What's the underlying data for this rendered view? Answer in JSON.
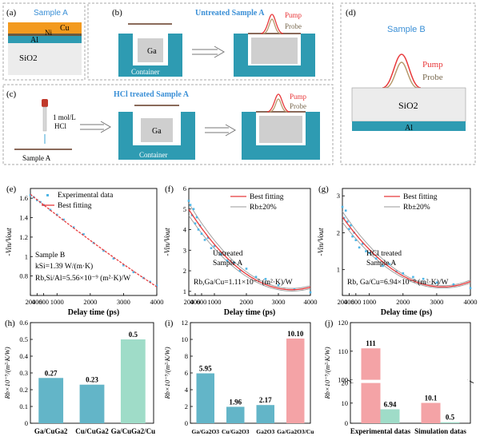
{
  "colors": {
    "teal": "#2e9bb2",
    "cu": "#f39a1e",
    "pump": "#e8393b",
    "probe": "#b79a6d",
    "experimental_points": "#4fb6e6",
    "fit_line": "#e8393b",
    "bar_teal": "#63b5c8",
    "bar_green": "#9fdcc8",
    "bar_pink": "#f4a3a6",
    "title_blue": "#3a8fd6"
  },
  "panels": {
    "a": {
      "letter": "(a)",
      "title": "Sample A",
      "cu": "Cu",
      "ni": "Ni",
      "al": "Al",
      "sio2": "SiO2"
    },
    "b": {
      "letter": "(b)",
      "title": "Untreated Sample A",
      "ga": "Ga",
      "container": "Container",
      "pump": "Pump",
      "probe": "Probe"
    },
    "c": {
      "letter": "(c)",
      "title": "HCl treated Sample A",
      "reagent": "1 mol/L",
      "reagent2": "HCl",
      "sample": "Sample A",
      "ga": "Ga",
      "container": "Container",
      "pump": "Pump",
      "probe": "Probe"
    },
    "d": {
      "letter": "(d)",
      "title": "Sample B",
      "pump": "Pump",
      "probe": "Probe",
      "sio2": "SiO2",
      "al": "Al"
    }
  },
  "chart_data": [
    {
      "id": "e",
      "letter": "(e)",
      "type": "scatter",
      "xlabel": "Delay time (ps)",
      "ylabel": "-Vin/Vout",
      "xlim": [
        200,
        4000
      ],
      "ylim": [
        0.6,
        1.7
      ],
      "xticks": [
        200,
        400,
        600,
        1000,
        2000,
        3000,
        4000
      ],
      "yticks": [
        1.6,
        1.4,
        1.2,
        1.0,
        0.8
      ],
      "legend": [
        "Experimental data",
        "Best fitting"
      ],
      "annotations": [
        "Sample B",
        "kSi=1.39 W/(m·K)",
        "Rb,Si/Al=5.56×10⁻⁹ (m²·K)/W"
      ],
      "x": [
        200,
        300,
        400,
        500,
        600,
        800,
        1000,
        1200,
        1500,
        1800,
        2100,
        2400,
        2700,
        3000,
        3300,
        3600,
        3800,
        4000
      ],
      "y": [
        1.63,
        1.61,
        1.58,
        1.56,
        1.53,
        1.48,
        1.43,
        1.38,
        1.3,
        1.23,
        1.14,
        1.06,
        0.98,
        0.91,
        0.84,
        0.78,
        0.74,
        0.7
      ]
    },
    {
      "id": "f",
      "letter": "(f)",
      "type": "scatter",
      "xlabel": "Delay time (ps)",
      "ylabel": "-Vin/Vout",
      "xlim": [
        200,
        4000
      ],
      "ylim": [
        0.8,
        6.0
      ],
      "xticks": [
        200,
        400,
        600,
        1000,
        2000,
        3000,
        4000
      ],
      "yticks": [
        6,
        5,
        4,
        3,
        2,
        1
      ],
      "legend": [
        "Best fitting",
        "Rb±20%"
      ],
      "annotations": [
        "Untreated",
        "Sample A",
        "Rb,Ga/Cu=1.11×10⁻⁷ (m²·K)/W"
      ],
      "x": [
        200,
        250,
        300,
        350,
        400,
        450,
        500,
        550,
        600,
        700,
        800,
        900,
        1000,
        1200,
        1400,
        1600,
        1800,
        2000,
        2300,
        2600,
        3000,
        3500,
        4000
      ],
      "y": [
        5.4,
        5.2,
        4.7,
        5.0,
        4.3,
        4.6,
        4.0,
        4.2,
        3.8,
        3.5,
        3.6,
        3.1,
        3.2,
        2.8,
        2.5,
        2.4,
        2.0,
        2.1,
        1.7,
        1.6,
        1.3,
        1.1,
        0.95
      ]
    },
    {
      "id": "g",
      "letter": "(g)",
      "type": "scatter",
      "xlabel": "Delay time (ps)",
      "ylabel": "-Vin/Vout",
      "xlim": [
        200,
        4000
      ],
      "ylim": [
        0.3,
        3.2
      ],
      "xticks": [
        200,
        400,
        600,
        1000,
        2000,
        3000,
        4000
      ],
      "yticks": [
        3,
        2,
        1
      ],
      "legend": [
        "Best fitting",
        "Rb±20%"
      ],
      "annotations": [
        "HCl treated",
        "Sample A",
        "Rb, Ga/Cu=6.94×10⁻⁹ (m²·K)/W"
      ],
      "x": [
        200,
        250,
        300,
        350,
        400,
        450,
        500,
        550,
        600,
        700,
        800,
        900,
        1000,
        1200,
        1400,
        1600,
        1800,
        2000,
        2300,
        2600,
        3000,
        3500,
        4000
      ],
      "y": [
        2.7,
        2.4,
        2.6,
        2.3,
        2.1,
        2.2,
        1.9,
        2.0,
        1.8,
        1.6,
        1.7,
        1.5,
        1.45,
        1.3,
        1.1,
        1.15,
        0.95,
        0.9,
        0.8,
        0.75,
        0.65,
        0.6,
        0.5
      ]
    },
    {
      "id": "h",
      "letter": "(h)",
      "type": "bar",
      "ylabel": "Rb×10⁻⁹/(m²·K/W)",
      "ylim": [
        0,
        0.6
      ],
      "yticks": [
        0.0,
        0.1,
        0.2,
        0.3,
        0.4,
        0.5,
        0.6
      ],
      "categories": [
        "Ga/CuGa2",
        "Cu/CuGa2",
        "Ga/CuGa2/Cu"
      ],
      "values": [
        0.27,
        0.23,
        0.5
      ],
      "value_labels": [
        "0.27",
        "0.23",
        "0.5"
      ]
    },
    {
      "id": "i",
      "letter": "(i)",
      "type": "bar",
      "ylabel": "Rb×10⁻⁹/(m²·K/W)",
      "ylim": [
        0,
        12
      ],
      "yticks": [
        0,
        2,
        4,
        6,
        8,
        10,
        12
      ],
      "categories": [
        "Ga/Ga2O3",
        "Cu/Ga2O3",
        "Ga2O3",
        "Ga/Ga2O3/Cu"
      ],
      "values": [
        5.95,
        1.96,
        2.17,
        10.1
      ],
      "value_labels": [
        "5.95",
        "1.96",
        "2.17",
        "10.10"
      ]
    },
    {
      "id": "j",
      "letter": "(j)",
      "type": "bar",
      "ylabel": "Rb×10⁻⁹/(m²·K/W)",
      "ylim": [
        0,
        120
      ],
      "axis_break": [
        20,
        100
      ],
      "yticks": [
        0,
        10,
        20,
        100,
        110,
        120
      ],
      "categories": [
        "Experimental datas",
        "Simulation datas"
      ],
      "series": [
        {
          "values": [
            111,
            10.1
          ],
          "value_labels": [
            "111",
            "10.1"
          ]
        },
        {
          "values": [
            6.94,
            0.5
          ],
          "value_labels": [
            "6.94",
            "0.5"
          ]
        }
      ]
    }
  ]
}
